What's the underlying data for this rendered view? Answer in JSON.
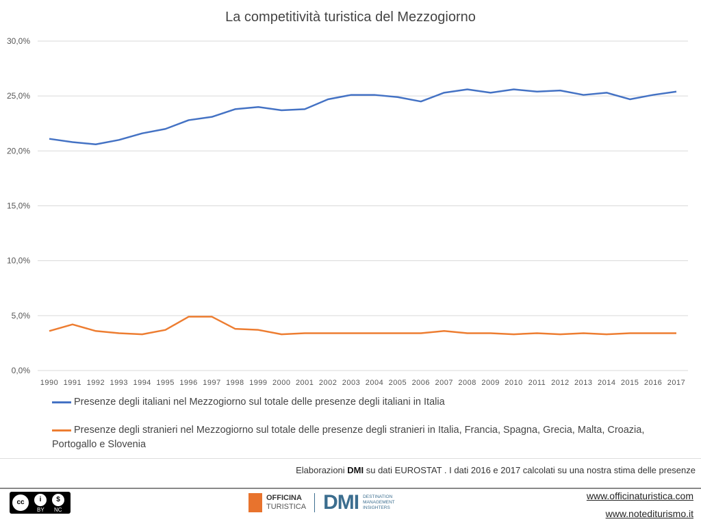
{
  "chart_data": {
    "type": "line",
    "title": "La competitività turistica del Mezzogiorno",
    "xlabel": "",
    "ylabel": "",
    "ylim": [
      0,
      30
    ],
    "yticks": [
      "0,0%",
      "5,0%",
      "10,0%",
      "15,0%",
      "20,0%",
      "25,0%",
      "30,0%"
    ],
    "grid": true,
    "legend_position": "bottom",
    "categories": [
      "1990",
      "1991",
      "1992",
      "1993",
      "1994",
      "1995",
      "1996",
      "1997",
      "1998",
      "1999",
      "2000",
      "2001",
      "2002",
      "2003",
      "2004",
      "2005",
      "2006",
      "2007",
      "2008",
      "2009",
      "2010",
      "2011",
      "2012",
      "2013",
      "2014",
      "2015",
      "2016",
      "2017"
    ],
    "series": [
      {
        "name": "Presenze degli italiani nel Mezzogiorno sul totale delle presenze degli italiani in Italia",
        "color": "#4472c4",
        "values": [
          21.1,
          20.8,
          20.6,
          21.0,
          21.6,
          22.0,
          22.8,
          23.1,
          23.8,
          24.0,
          23.7,
          23.8,
          24.7,
          25.1,
          25.1,
          24.9,
          24.5,
          25.3,
          25.6,
          25.3,
          25.6,
          25.4,
          25.5,
          25.1,
          25.3,
          24.7,
          25.1,
          25.4
        ]
      },
      {
        "name": "Presenze degli stranieri nel Mezzogiorno sul totale delle presenze degli stranieri in Italia, Francia, Spagna,  Grecia, Malta, Croazia, Portogallo e Slovenia",
        "color": "#ed7d31",
        "values": [
          3.6,
          4.2,
          3.6,
          3.4,
          3.3,
          3.7,
          4.9,
          4.9,
          3.8,
          3.7,
          3.3,
          3.4,
          3.4,
          3.4,
          3.4,
          3.4,
          3.4,
          3.6,
          3.4,
          3.4,
          3.3,
          3.4,
          3.3,
          3.4,
          3.3,
          3.4,
          3.4,
          3.4
        ]
      }
    ]
  },
  "footer": {
    "source_prefix": "Elaborazioni ",
    "source_bold": "DMI",
    "source_rest": " su dati EUROSTAT . I dati 2016 e 2017 calcolati su una nostra stima delle presenze",
    "license": {
      "by": "BY",
      "nc": "NC",
      "cc": "cc"
    },
    "officina_1": "OFFICINA",
    "officina_2": "TURISTICA",
    "dmi": "DMI",
    "dmi_sub": [
      "DESTINATION",
      "MANAGEMENT",
      "INSIGHTERS"
    ],
    "link1": "www.officinaturistica.com",
    "link2": "www.notediturismo.it"
  }
}
